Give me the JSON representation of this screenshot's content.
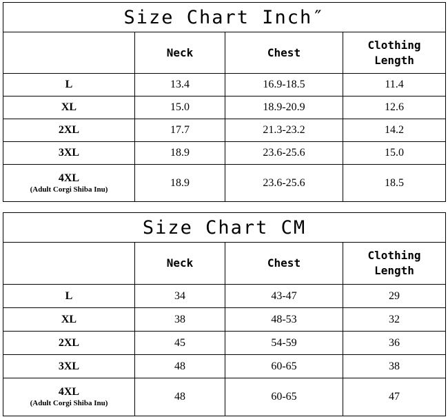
{
  "columns": [
    "",
    "Neck",
    "Chest",
    "Clothing Length"
  ],
  "inch": {
    "title": "Size Chart Inch″",
    "rows": [
      {
        "size": "L",
        "note": "",
        "neck": "13.4",
        "chest": "16.9-18.5",
        "length": "11.4"
      },
      {
        "size": "XL",
        "note": "",
        "neck": "15.0",
        "chest": "18.9-20.9",
        "length": "12.6"
      },
      {
        "size": "2XL",
        "note": "",
        "neck": "17.7",
        "chest": "21.3-23.2",
        "length": "14.2"
      },
      {
        "size": "3XL",
        "note": "",
        "neck": "18.9",
        "chest": "23.6-25.6",
        "length": "15.0"
      },
      {
        "size": "4XL",
        "note": "(Adult Corgi Shiba Inu)",
        "neck": "18.9",
        "chest": "23.6-25.6",
        "length": "18.5"
      }
    ]
  },
  "cm": {
    "title": "Size Chart CM",
    "rows": [
      {
        "size": "L",
        "note": "",
        "neck": "34",
        "chest": "43-47",
        "length": "29"
      },
      {
        "size": "XL",
        "note": "",
        "neck": "38",
        "chest": "48-53",
        "length": "32"
      },
      {
        "size": "2XL",
        "note": "",
        "neck": "45",
        "chest": "54-59",
        "length": "36"
      },
      {
        "size": "3XL",
        "note": "",
        "neck": "48",
        "chest": "60-65",
        "length": "38"
      },
      {
        "size": "4XL",
        "note": "(Adult Corgi Shiba Inu)",
        "neck": "48",
        "chest": "60-65",
        "length": "47"
      }
    ]
  }
}
